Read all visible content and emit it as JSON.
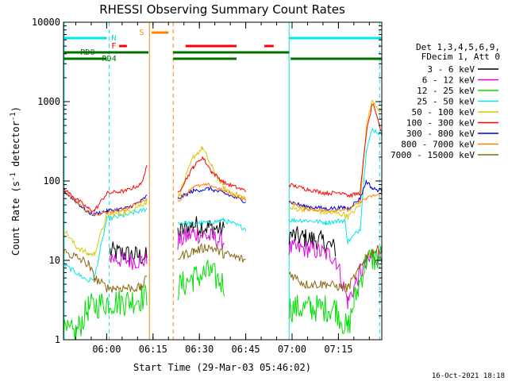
{
  "chart_data": {
    "type": "line",
    "title": "RHESSI Observing Summary Count Rates",
    "xlabel": "Start Time (29-Mar-03 05:46:02)",
    "ylabel_main": "Count Rate (s",
    "ylabel_exp": "-1",
    "ylabel_mid": " detector",
    "ylabel_end": ")",
    "yscale": "log",
    "ylim": [
      1,
      10000
    ],
    "xlim_min_from_start": [
      0,
      103
    ],
    "y_ticks": [
      "10000",
      "1000",
      "100",
      "10",
      "1"
    ],
    "x_ticks": [
      "06:00",
      "06:15",
      "06:30",
      "06:45",
      "07:00",
      "07:15"
    ],
    "detector_info": [
      "Det 1,3,4,5,6,9,",
      "FDecim 1, Att 0"
    ],
    "footer_date": "16-Oct-2021 18:18",
    "flags": {
      "N": {
        "label": "N",
        "color": "#00e5e5"
      },
      "F": {
        "label": "F",
        "color": "#ff0000"
      },
      "S": {
        "label": "S",
        "color": "#ff8000"
      },
      "RD0": {
        "label": "RD0",
        "color": "#007000"
      },
      "RD4": {
        "label": "RD4",
        "color": "#007000"
      }
    },
    "series": [
      {
        "name": "3 - 6 keV",
        "color": "#000000"
      },
      {
        "name": "6 - 12 keV",
        "color": "#e000e0"
      },
      {
        "name": "12 - 25 keV",
        "color": "#00e000"
      },
      {
        "name": "25 - 50 keV",
        "color": "#00e5e5"
      },
      {
        "name": "50 - 100 keV",
        "color": "#d8c800"
      },
      {
        "name": "100 - 300 keV",
        "color": "#ff0000"
      },
      {
        "name": "300 - 800 keV",
        "color": "#0000dd"
      },
      {
        "name": "800 - 7000 keV",
        "color": "#ff8000"
      },
      {
        "name": "7000 - 15000 keV",
        "color": "#8b6914"
      }
    ],
    "series_data": {
      "3 - 6 keV": [
        [
          0,
          null
        ],
        [
          14,
          null
        ],
        [
          15,
          13
        ],
        [
          20,
          12
        ],
        [
          27,
          11
        ],
        [
          28,
          null
        ],
        [
          36,
          null
        ],
        [
          37,
          22
        ],
        [
          42,
          28
        ],
        [
          47,
          26
        ],
        [
          52,
          24
        ],
        [
          59,
          null
        ],
        [
          60,
          null
        ],
        [
          62,
          null
        ],
        [
          65,
          null
        ],
        [
          72,
          null
        ],
        [
          73,
          21
        ],
        [
          78,
          19
        ],
        [
          83,
          18
        ],
        [
          88,
          14
        ],
        [
          92,
          null
        ],
        [
          94,
          null
        ],
        [
          103,
          null
        ]
      ],
      "6 - 12 keV": [
        [
          0,
          null
        ],
        [
          14,
          null
        ],
        [
          15,
          11
        ],
        [
          20,
          10
        ],
        [
          27,
          10
        ],
        [
          28,
          null
        ],
        [
          36,
          null
        ],
        [
          37,
          17
        ],
        [
          42,
          22
        ],
        [
          47,
          20
        ],
        [
          52,
          17
        ],
        [
          59,
          null
        ],
        [
          60,
          null
        ],
        [
          65,
          null
        ],
        [
          72,
          null
        ],
        [
          73,
          14
        ],
        [
          80,
          14
        ],
        [
          88,
          11
        ],
        [
          92,
          3
        ],
        [
          96,
          7
        ],
        [
          100,
          11
        ],
        [
          103,
          12
        ]
      ],
      "12 - 25 keV": [
        [
          0,
          1.2
        ],
        [
          4,
          1.2
        ],
        [
          8,
          2.5
        ],
        [
          14,
          3
        ],
        [
          20,
          3
        ],
        [
          27,
          3.5
        ],
        [
          28,
          null
        ],
        [
          36,
          null
        ],
        [
          37,
          4.5
        ],
        [
          42,
          6
        ],
        [
          47,
          7
        ],
        [
          52,
          5
        ],
        [
          59,
          null
        ],
        [
          60,
          null
        ],
        [
          72,
          null
        ],
        [
          73,
          2.5
        ],
        [
          80,
          2.5
        ],
        [
          88,
          2.5
        ],
        [
          92,
          1.3
        ],
        [
          94,
          3
        ],
        [
          98,
          10
        ],
        [
          103,
          11
        ]
      ],
      "25 - 50 keV": [
        [
          0,
          9
        ],
        [
          4,
          7
        ],
        [
          8,
          5.5
        ],
        [
          10,
          6
        ],
        [
          14,
          33
        ],
        [
          20,
          37
        ],
        [
          25,
          42
        ],
        [
          27,
          45
        ],
        [
          28,
          null
        ],
        [
          36,
          null
        ],
        [
          37,
          30
        ],
        [
          42,
          29
        ],
        [
          47,
          30
        ],
        [
          52,
          32
        ],
        [
          59,
          25
        ],
        [
          60,
          null
        ],
        [
          65,
          null
        ],
        [
          72,
          null
        ],
        [
          73,
          32
        ],
        [
          78,
          32
        ],
        [
          85,
          30
        ],
        [
          91,
          32
        ],
        [
          92,
          17
        ],
        [
          96,
          25
        ],
        [
          98,
          250
        ],
        [
          100,
          450
        ],
        [
          103,
          380
        ]
      ],
      "50 - 100 keV": [
        [
          0,
          25
        ],
        [
          4,
          15
        ],
        [
          8,
          12
        ],
        [
          10,
          12
        ],
        [
          14,
          37
        ],
        [
          20,
          40
        ],
        [
          25,
          50
        ],
        [
          27,
          55
        ],
        [
          28,
          null
        ],
        [
          36,
          null
        ],
        [
          37,
          60
        ],
        [
          42,
          200
        ],
        [
          45,
          260
        ],
        [
          48,
          150
        ],
        [
          52,
          80
        ],
        [
          59,
          60
        ],
        [
          60,
          null
        ],
        [
          65,
          null
        ],
        [
          72,
          null
        ],
        [
          73,
          45
        ],
        [
          78,
          44
        ],
        [
          85,
          40
        ],
        [
          91,
          38
        ],
        [
          92,
          35
        ],
        [
          96,
          50
        ],
        [
          98,
          500
        ],
        [
          100,
          1050
        ],
        [
          103,
          700
        ]
      ],
      "100 - 300 keV": [
        [
          0,
          80
        ],
        [
          4,
          60
        ],
        [
          8,
          45
        ],
        [
          10,
          42
        ],
        [
          14,
          70
        ],
        [
          20,
          75
        ],
        [
          25,
          90
        ],
        [
          27,
          150
        ],
        [
          28,
          null
        ],
        [
          36,
          null
        ],
        [
          37,
          70
        ],
        [
          42,
          150
        ],
        [
          45,
          200
        ],
        [
          48,
          130
        ],
        [
          52,
          95
        ],
        [
          59,
          75
        ],
        [
          60,
          null
        ],
        [
          65,
          null
        ],
        [
          72,
          null
        ],
        [
          73,
          90
        ],
        [
          78,
          80
        ],
        [
          85,
          70
        ],
        [
          91,
          72
        ],
        [
          92,
          65
        ],
        [
          96,
          70
        ],
        [
          98,
          400
        ],
        [
          100,
          950
        ],
        [
          103,
          400
        ]
      ],
      "300 - 800 keV": [
        [
          0,
          75
        ],
        [
          4,
          55
        ],
        [
          8,
          40
        ],
        [
          10,
          38
        ],
        [
          14,
          42
        ],
        [
          20,
          45
        ],
        [
          25,
          55
        ],
        [
          27,
          65
        ],
        [
          28,
          null
        ],
        [
          36,
          null
        ],
        [
          37,
          60
        ],
        [
          42,
          75
        ],
        [
          47,
          80
        ],
        [
          52,
          70
        ],
        [
          59,
          55
        ],
        [
          60,
          null
        ],
        [
          65,
          null
        ],
        [
          72,
          null
        ],
        [
          73,
          55
        ],
        [
          78,
          48
        ],
        [
          85,
          45
        ],
        [
          91,
          46
        ],
        [
          92,
          45
        ],
        [
          96,
          60
        ],
        [
          98,
          100
        ],
        [
          100,
          80
        ],
        [
          103,
          75
        ]
      ],
      "800 - 7000 keV": [
        [
          0,
          75
        ],
        [
          4,
          55
        ],
        [
          8,
          40
        ],
        [
          10,
          37
        ],
        [
          14,
          40
        ],
        [
          20,
          44
        ],
        [
          25,
          55
        ],
        [
          27,
          60
        ],
        [
          28,
          null
        ],
        [
          36,
          null
        ],
        [
          37,
          55
        ],
        [
          42,
          85
        ],
        [
          47,
          90
        ],
        [
          52,
          75
        ],
        [
          59,
          58
        ],
        [
          60,
          null
        ],
        [
          65,
          null
        ],
        [
          72,
          null
        ],
        [
          73,
          55
        ],
        [
          78,
          45
        ],
        [
          85,
          42
        ],
        [
          91,
          44
        ],
        [
          92,
          42
        ],
        [
          96,
          55
        ],
        [
          98,
          60
        ],
        [
          100,
          65
        ],
        [
          103,
          68
        ]
      ],
      "7000 - 15000 keV": [
        [
          0,
          13
        ],
        [
          4,
          11
        ],
        [
          8,
          9
        ],
        [
          10,
          6
        ],
        [
          14,
          4.5
        ],
        [
          20,
          4.5
        ],
        [
          25,
          4.5
        ],
        [
          27,
          6
        ],
        [
          28,
          null
        ],
        [
          36,
          null
        ],
        [
          37,
          11
        ],
        [
          42,
          13
        ],
        [
          47,
          15
        ],
        [
          52,
          12
        ],
        [
          59,
          10
        ],
        [
          60,
          null
        ],
        [
          65,
          null
        ],
        [
          72,
          null
        ],
        [
          73,
          7
        ],
        [
          78,
          5
        ],
        [
          85,
          5
        ],
        [
          91,
          4.5
        ],
        [
          92,
          4.5
        ],
        [
          96,
          8
        ],
        [
          98,
          11
        ],
        [
          100,
          13
        ],
        [
          103,
          14
        ]
      ]
    }
  }
}
